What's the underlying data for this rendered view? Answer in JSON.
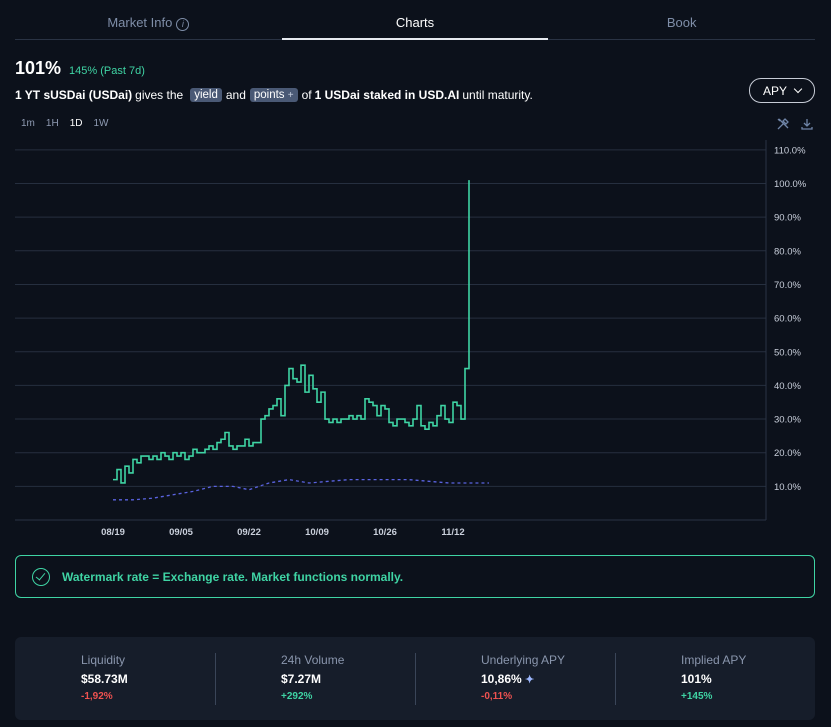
{
  "tabs": [
    {
      "label": "Market Info",
      "active": false
    },
    {
      "label": "Charts",
      "active": true
    },
    {
      "label": "Book",
      "active": false
    }
  ],
  "headline": {
    "value": "101%",
    "change": "145% (Past 7d)"
  },
  "description": {
    "part1": "1 YT sUSDai (USDai)",
    "part2": "gives the",
    "pill_yield": "yield",
    "part3": "and",
    "pill_points": "points",
    "pill_points_plus": "+",
    "part4": "of",
    "part5": "1 USDai staked in USD.AI",
    "part6": "until maturity."
  },
  "apy_select": {
    "selected": "APY"
  },
  "ranges": [
    "1m",
    "1H",
    "1D",
    "1W"
  ],
  "selected_range": "1D",
  "tools": {
    "settings_icon": "tools-icon",
    "download_icon": "download-icon"
  },
  "colors": {
    "implied": "#3fd4a4",
    "underlying": "#5a63e0",
    "accent": "#3fd4a4",
    "negative": "#ef5250"
  },
  "chart_data": {
    "type": "line",
    "ylim": [
      0,
      110
    ],
    "y_ticks": [
      "110.0%",
      "100.0%",
      "90.0%",
      "80.0%",
      "70.0%",
      "60.0%",
      "50.0%",
      "40.0%",
      "30.0%",
      "20.0%",
      "10.0%"
    ],
    "x_ticks": [
      "08/19",
      "09/05",
      "09/22",
      "10/09",
      "10/26",
      "11/12"
    ],
    "grid": true,
    "series": [
      {
        "style": "solid",
        "x": [
          "08/19",
          "08/20",
          "08/21",
          "08/22",
          "08/23",
          "08/24",
          "08/25",
          "08/26",
          "08/27",
          "08/28",
          "08/29",
          "08/30",
          "08/31",
          "09/01",
          "09/02",
          "09/03",
          "09/04",
          "09/05",
          "09/06",
          "09/07",
          "09/08",
          "09/09",
          "09/10",
          "09/11",
          "09/12",
          "09/13",
          "09/14",
          "09/15",
          "09/16",
          "09/17",
          "09/18",
          "09/19",
          "09/20",
          "09/21",
          "09/22",
          "09/23",
          "09/24",
          "09/25",
          "09/26",
          "09/27",
          "09/28",
          "09/29",
          "09/30",
          "10/01",
          "10/02",
          "10/03",
          "10/04",
          "10/05",
          "10/06",
          "10/07",
          "10/08",
          "10/09",
          "10/10",
          "10/11",
          "10/12",
          "10/13",
          "10/14",
          "10/15",
          "10/16",
          "10/17",
          "10/18",
          "10/19",
          "10/20",
          "10/21",
          "10/22",
          "10/23",
          "10/24",
          "10/25",
          "10/26",
          "10/27",
          "10/28",
          "10/29",
          "10/30",
          "10/31",
          "11/01",
          "11/02",
          "11/03",
          "11/04",
          "11/05",
          "11/06",
          "11/07",
          "11/08",
          "11/09",
          "11/10",
          "11/11",
          "11/12",
          "11/13",
          "11/14",
          "11/15",
          "11/16",
          "11/17",
          "11/18",
          "11/19",
          "11/20",
          "11/21"
        ],
        "values": [
          12,
          15,
          11,
          16,
          14,
          18,
          17,
          19,
          19,
          18,
          19,
          18,
          20,
          19,
          18,
          20,
          19,
          20,
          18,
          19,
          21,
          20,
          20,
          21,
          22,
          21,
          23,
          24,
          26,
          22,
          21,
          22,
          22,
          24,
          22,
          23,
          23,
          30,
          31,
          33,
          34,
          36,
          31,
          40,
          45,
          42,
          41,
          46,
          38,
          43,
          39,
          35,
          38,
          30,
          29,
          30,
          29,
          30,
          30,
          31,
          30,
          31,
          30,
          36,
          35,
          34,
          31,
          34,
          33,
          29,
          28,
          30,
          30,
          29,
          28,
          30,
          34,
          28,
          27,
          29,
          28,
          31,
          34,
          30,
          29,
          35,
          34,
          30,
          45,
          101,
          101,
          101,
          101,
          101,
          101
        ],
        "values_trimmed_to": 90
      },
      {
        "style": "dashed",
        "x": [
          "08/19",
          "08/24",
          "08/29",
          "09/03",
          "09/08",
          "09/13",
          "09/18",
          "09/22",
          "09/27",
          "10/02",
          "10/07",
          "10/12",
          "10/17",
          "10/22",
          "10/27",
          "11/01",
          "11/06",
          "11/11",
          "11/16",
          "11/21"
        ],
        "values": [
          6,
          6,
          6.5,
          7.5,
          8.5,
          10,
          10,
          9,
          11,
          12,
          11,
          11.5,
          12,
          12,
          12,
          12,
          11.5,
          11,
          11,
          11
        ]
      }
    ]
  },
  "notice": {
    "text": "Watermark rate = Exchange rate. Market functions normally."
  },
  "stats": [
    {
      "label": "Liquidity",
      "value": "$58.73M",
      "change": "-1,92%",
      "dir": "neg"
    },
    {
      "label": "24h Volume",
      "value": "$7.27M",
      "change": "+292%",
      "dir": "pos"
    },
    {
      "label": "Underlying APY",
      "value": "10,86%",
      "change": "-0,11%",
      "dir": "neg"
    },
    {
      "label": "Implied APY",
      "value": "101%",
      "change": "+145%",
      "dir": "pos"
    }
  ]
}
